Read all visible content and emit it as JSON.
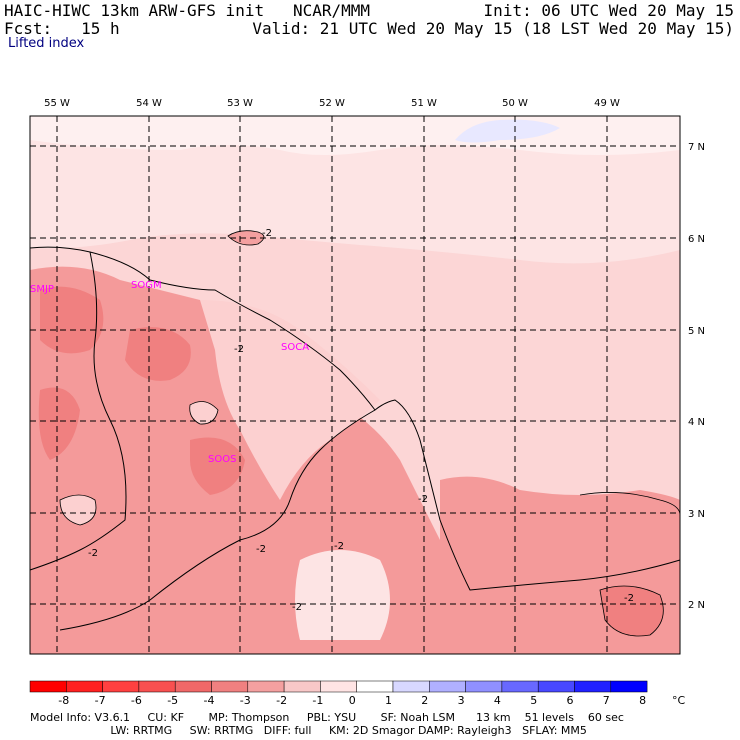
{
  "header": {
    "line1_left": "HAIC-HIWC 13km ARW-GFS init   NCAR/MMM",
    "line1_right": "Init: 06 UTC Wed 20 May 15",
    "line2_left": "Fcst:   15 h",
    "line2_right": "Valid: 21 UTC Wed 20 May 15 (18 LST Wed 20 May 15)",
    "field": "Lifted index"
  },
  "map": {
    "lon_labels": [
      "55 W",
      "54 W",
      "53 W",
      "52 W",
      "51 W",
      "50 W",
      "49 W"
    ],
    "lat_labels": [
      "7 N",
      "6 N",
      "5 N",
      "4 N",
      "3 N",
      "2 N"
    ],
    "stations": [
      "SMJP",
      "SOGM",
      "SOCA",
      "SOOS"
    ],
    "contour_labels": [
      "-2",
      "-2",
      "-2",
      "-2",
      "-2",
      "-2",
      "-2",
      "-2"
    ]
  },
  "colorbar": {
    "unit": "°C",
    "labels": [
      "-8",
      "-7",
      "-6",
      "-5",
      "-4",
      "-3",
      "-2",
      "-1",
      "0",
      "1",
      "2",
      "3",
      "4",
      "5",
      "6",
      "7",
      "8"
    ],
    "colors": [
      "#ff0000",
      "#ff2020",
      "#ff4040",
      "#f85050",
      "#f06868",
      "#f08080",
      "#f4a0a0",
      "#f8c8c8",
      "#ffe4e4",
      "#ffffff",
      "#d8d8ff",
      "#b0b0ff",
      "#9090ff",
      "#6868ff",
      "#4848ff",
      "#2020ff",
      "#0000ff"
    ]
  },
  "model_info": {
    "line1": "Model Info: V3.6.1     CU: KF       MP: Thompson     PBL: YSU       SF: Noah LSM      13 km    51 levels    60 sec",
    "line2": "                       LW: RRTMG     SW: RRTMG   DIFF: full     KM: 2D Smagor DAMP: Rayleigh3   SFLAY: MM5"
  }
}
